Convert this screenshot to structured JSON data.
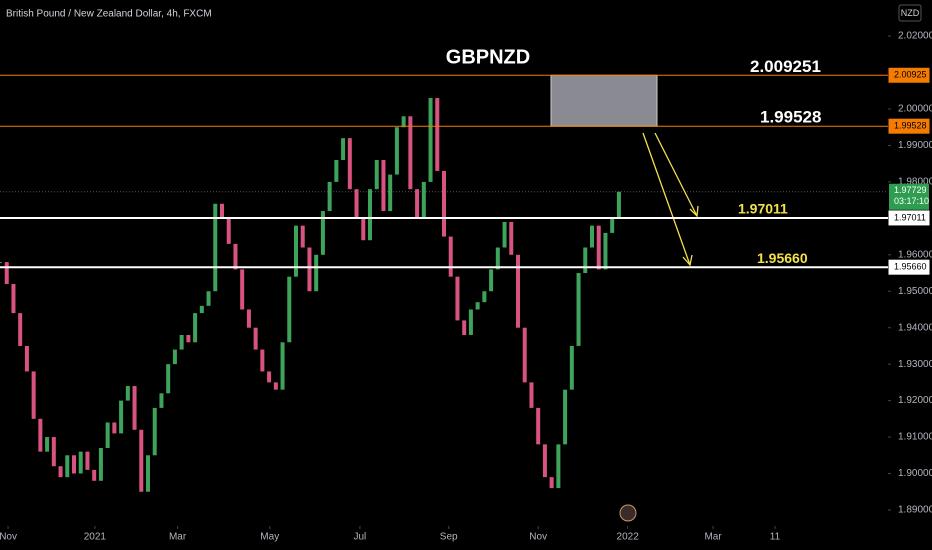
{
  "chart_data": {
    "type": "candlestick",
    "title": "GBPNZD",
    "symbol_text": "British Pound / New Zealand Dollar, 4h, FXCM",
    "currency": "NZD",
    "up_color": "#3fa45b",
    "down_color": "#d9537f",
    "values": [
      1.958,
      1.952,
      1.944,
      1.935,
      1.928,
      1.915,
      1.906,
      1.91,
      1.902,
      1.899,
      1.905,
      1.9,
      1.906,
      1.901,
      1.898,
      1.907,
      1.914,
      1.911,
      1.92,
      1.924,
      1.912,
      1.895,
      1.905,
      1.918,
      1.922,
      1.93,
      1.934,
      1.938,
      1.936,
      1.944,
      1.946,
      1.95,
      1.974,
      1.97,
      1.963,
      1.956,
      1.945,
      1.94,
      1.934,
      1.928,
      1.925,
      1.923,
      1.936,
      1.954,
      1.968,
      1.962,
      1.95,
      1.96,
      1.972,
      1.98,
      1.986,
      1.992,
      1.978,
      1.97,
      1.964,
      1.978,
      1.986,
      1.972,
      1.982,
      1.995,
      1.998,
      1.978,
      1.97,
      1.98,
      2.003,
      1.983,
      1.965,
      1.954,
      1.942,
      1.938,
      1.945,
      1.947,
      1.95,
      1.956,
      1.962,
      1.969,
      1.96,
      1.94,
      1.925,
      1.918,
      1.908,
      1.899,
      1.896,
      1.908,
      1.923,
      1.935,
      1.955,
      1.962,
      1.968,
      1.956,
      1.966,
      1.97,
      1.9773
    ],
    "xlim": [
      0,
      132
    ],
    "ylim": [
      1.8856,
      2.0299
    ],
    "xticks": [
      {
        "value": 1.2,
        "label": "Nov"
      },
      {
        "value": 14.1,
        "label": "2021"
      },
      {
        "value": 26.4,
        "label": "Mar"
      },
      {
        "value": 40.1,
        "label": "May"
      },
      {
        "value": 53.5,
        "label": "Jul"
      },
      {
        "value": 66.7,
        "label": "Sep"
      },
      {
        "value": 80,
        "label": "Nov"
      },
      {
        "value": 93.3,
        "label": "2022"
      },
      {
        "value": 106,
        "label": "Mar"
      },
      {
        "value": 115.2,
        "label": "11"
      }
    ],
    "yticks": [
      {
        "value": 2.02,
        "label": "2.02000"
      },
      {
        "value": 2.0,
        "label": "2.00000"
      },
      {
        "value": 1.99,
        "label": "1.99000"
      },
      {
        "value": 1.98,
        "label": "1.98000"
      },
      {
        "value": 1.96,
        "label": "1.96000"
      },
      {
        "value": 1.95,
        "label": "1.95000"
      },
      {
        "value": 1.94,
        "label": "1.94000"
      },
      {
        "value": 1.93,
        "label": "1.93000"
      },
      {
        "value": 1.92,
        "label": "1.92000"
      },
      {
        "value": 1.91,
        "label": "1.91000"
      },
      {
        "value": 1.9,
        "label": "1.90000"
      },
      {
        "value": 1.89,
        "label": "1.89000"
      }
    ],
    "levels": [
      {
        "value": 2.009251,
        "label": "2.009251",
        "axis_label": "2.00925",
        "color": "#f57c00",
        "text_color": "#ffffff",
        "label_x": 750
      },
      {
        "value": 1.99528,
        "label": "1.99528",
        "axis_label": "1.99528",
        "color": "#f57c00",
        "text_color": "#ffffff",
        "label_x": 760
      },
      {
        "value": 1.97011,
        "label": "1.97011",
        "axis_label": "1.97011",
        "color": "#ffffff",
        "text_color": "#f2e14c",
        "label_x": 738
      },
      {
        "value": 1.9566,
        "label": "1.95660",
        "axis_label": "1.95660",
        "color": "#ffffff",
        "text_color": "#f2e14c",
        "label_x": 757
      }
    ],
    "last": {
      "value": 1.97729,
      "label": "1.97729",
      "countdown": "03:17:10"
    }
  }
}
